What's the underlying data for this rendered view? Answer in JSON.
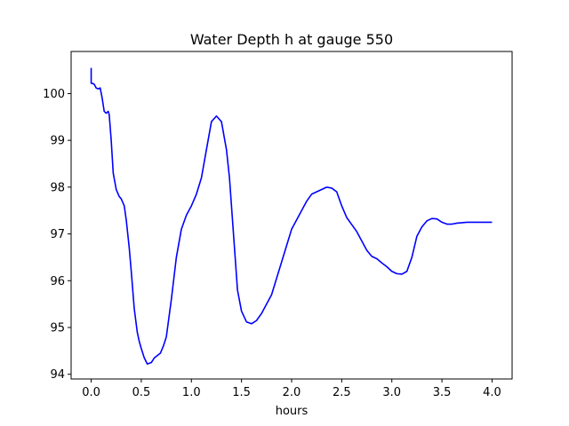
{
  "chart_data": {
    "type": "line",
    "title": "Water Depth h at gauge 550",
    "xlabel": "hours",
    "ylabel": "",
    "xlim": [
      -0.2,
      4.2
    ],
    "ylim": [
      93.9,
      100.9
    ],
    "xticks": [
      0.0,
      0.5,
      1.0,
      1.5,
      2.0,
      2.5,
      3.0,
      3.5,
      4.0
    ],
    "xtick_labels": [
      "0.0",
      "0.5",
      "1.0",
      "1.5",
      "2.0",
      "2.5",
      "3.0",
      "3.5",
      "4.0"
    ],
    "yticks": [
      94,
      95,
      96,
      97,
      98,
      99,
      100
    ],
    "ytick_labels": [
      "94",
      "95",
      "96",
      "97",
      "98",
      "99",
      "100"
    ],
    "grid": false,
    "line_color": "#0000ff",
    "series": [
      {
        "x": [
          0.0,
          0.0,
          0.01,
          0.03,
          0.05,
          0.07,
          0.09,
          0.11,
          0.13,
          0.15,
          0.17,
          0.18,
          0.2,
          0.22,
          0.25,
          0.28,
          0.3,
          0.33,
          0.35,
          0.38,
          0.4,
          0.43,
          0.46,
          0.48,
          0.5,
          0.53,
          0.56,
          0.6,
          0.63,
          0.66,
          0.69,
          0.72,
          0.75,
          0.8,
          0.85,
          0.9,
          0.95,
          1.0,
          1.05,
          1.1,
          1.15,
          1.2,
          1.25,
          1.3,
          1.35,
          1.38,
          1.4,
          1.43,
          1.46,
          1.5,
          1.55,
          1.6,
          1.65,
          1.7,
          1.75,
          1.8,
          1.85,
          1.9,
          1.95,
          2.0,
          2.05,
          2.1,
          2.15,
          2.2,
          2.25,
          2.3,
          2.35,
          2.4,
          2.45,
          2.5,
          2.55,
          2.6,
          2.65,
          2.7,
          2.75,
          2.8,
          2.85,
          2.9,
          2.95,
          3.0,
          3.05,
          3.1,
          3.15,
          3.2,
          3.25,
          3.3,
          3.35,
          3.4,
          3.45,
          3.5,
          3.55,
          3.6,
          3.65,
          3.7,
          3.75,
          3.8,
          3.85,
          3.9,
          3.95,
          4.0
        ],
        "y": [
          100.55,
          100.22,
          100.22,
          100.2,
          100.12,
          100.1,
          100.12,
          99.9,
          99.62,
          99.58,
          99.62,
          99.55,
          99.0,
          98.3,
          97.95,
          97.8,
          97.75,
          97.6,
          97.3,
          96.7,
          96.2,
          95.4,
          94.9,
          94.7,
          94.55,
          94.35,
          94.22,
          94.25,
          94.35,
          94.4,
          94.45,
          94.6,
          94.8,
          95.6,
          96.5,
          97.1,
          97.4,
          97.6,
          97.85,
          98.2,
          98.8,
          99.4,
          99.52,
          99.4,
          98.8,
          98.2,
          97.6,
          96.7,
          95.8,
          95.35,
          95.12,
          95.08,
          95.15,
          95.3,
          95.5,
          95.7,
          96.05,
          96.4,
          96.75,
          97.1,
          97.3,
          97.5,
          97.7,
          97.85,
          97.9,
          97.95,
          98.0,
          97.98,
          97.9,
          97.6,
          97.35,
          97.2,
          97.05,
          96.85,
          96.65,
          96.52,
          96.47,
          96.38,
          96.3,
          96.2,
          96.15,
          96.14,
          96.2,
          96.5,
          96.95,
          97.15,
          97.28,
          97.33,
          97.32,
          97.25,
          97.21,
          97.21,
          97.23,
          97.24,
          97.25,
          97.25,
          97.25,
          97.25,
          97.25,
          97.25
        ]
      }
    ]
  }
}
